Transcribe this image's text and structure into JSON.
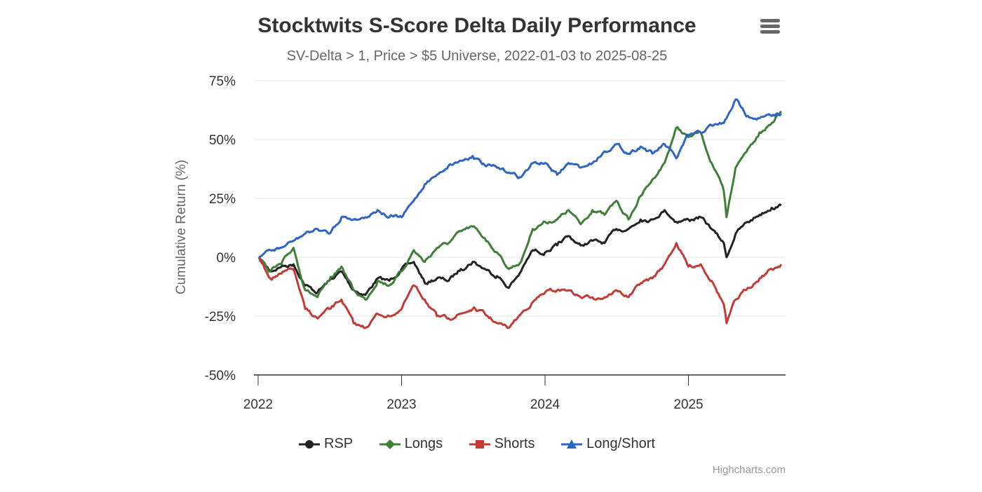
{
  "chart_data": {
    "type": "line",
    "title": "Stocktwits S-Score Delta Daily Performance",
    "subtitle": "SV-Delta > 1, Price > $5 Universe, 2022-01-03 to 2025-08-25",
    "xlabel": "",
    "ylabel": "Cumulative Return (%)",
    "ylim": [
      -50,
      75
    ],
    "y_ticks": [
      -50,
      -25,
      0,
      25,
      50,
      75
    ],
    "y_tick_labels": [
      "-50%",
      "-25%",
      "0%",
      "25%",
      "50%",
      "75%"
    ],
    "x_range": [
      "2022-01-03",
      "2025-08-25"
    ],
    "x_ticks": [
      "2022",
      "2023",
      "2024",
      "2025"
    ],
    "grid": true,
    "legend_position": "bottom-center",
    "x": [
      "2022-01-03",
      "2022-02-01",
      "2022-03-01",
      "2022-04-01",
      "2022-05-01",
      "2022-06-01",
      "2022-07-01",
      "2022-08-01",
      "2022-09-01",
      "2022-10-01",
      "2022-11-01",
      "2022-12-01",
      "2023-01-01",
      "2023-02-01",
      "2023-03-01",
      "2023-04-01",
      "2023-05-01",
      "2023-06-01",
      "2023-07-01",
      "2023-08-01",
      "2023-09-01",
      "2023-10-01",
      "2023-11-01",
      "2023-12-01",
      "2024-01-01",
      "2024-02-01",
      "2024-03-01",
      "2024-04-01",
      "2024-05-01",
      "2024-06-01",
      "2024-07-01",
      "2024-08-01",
      "2024-09-01",
      "2024-10-01",
      "2024-11-01",
      "2024-12-01",
      "2025-01-01",
      "2025-02-01",
      "2025-03-01",
      "2025-04-01",
      "2025-04-08",
      "2025-05-01",
      "2025-06-01",
      "2025-07-01",
      "2025-08-01",
      "2025-08-25"
    ],
    "series": [
      {
        "name": "RSP",
        "color": "#222222",
        "marker": "circle",
        "values": [
          0,
          -6,
          -4,
          -3,
          -12,
          -15,
          -10,
          -6,
          -14,
          -16,
          -9,
          -10,
          -5,
          -2,
          -11,
          -9,
          -10,
          -5,
          -2,
          -5,
          -8,
          -13,
          -6,
          3,
          2,
          5,
          9,
          5,
          7,
          6,
          12,
          12,
          16,
          16,
          20,
          15,
          16,
          17,
          12,
          6,
          0,
          10,
          15,
          18,
          21,
          22
        ]
      },
      {
        "name": "Longs",
        "color": "#3f7f3a",
        "marker": "diamond",
        "values": [
          0,
          -6,
          -3,
          4,
          -14,
          -17,
          -10,
          -4,
          -14,
          -18,
          -10,
          -12,
          -6,
          3,
          -2,
          4,
          6,
          11,
          13,
          8,
          2,
          -5,
          -2,
          12,
          15,
          16,
          20,
          14,
          20,
          18,
          24,
          16,
          26,
          33,
          40,
          55,
          51,
          53,
          40,
          28,
          17,
          38,
          46,
          53,
          57,
          62
        ]
      },
      {
        "name": "Shorts",
        "color": "#c43b35",
        "marker": "square",
        "values": [
          0,
          -9,
          -7,
          -5,
          -22,
          -26,
          -22,
          -18,
          -28,
          -30,
          -24,
          -25,
          -22,
          -12,
          -18,
          -25,
          -26,
          -24,
          -22,
          -24,
          -28,
          -30,
          -24,
          -19,
          -15,
          -14,
          -14,
          -17,
          -17,
          -17,
          -14,
          -17,
          -11,
          -9,
          -3,
          6,
          -4,
          -3,
          -10,
          -20,
          -28,
          -18,
          -13,
          -9,
          -5,
          -3
        ]
      },
      {
        "name": "Long/Short",
        "color": "#2f65c4",
        "marker": "triangle",
        "values": [
          0,
          3,
          4,
          7,
          10,
          12,
          10,
          17,
          16,
          17,
          20,
          17,
          17,
          24,
          31,
          35,
          39,
          41,
          43,
          39,
          38,
          36,
          34,
          40,
          40,
          35,
          40,
          38,
          40,
          45,
          48,
          44,
          47,
          44,
          48,
          42,
          52,
          53,
          56,
          57,
          59,
          67,
          60,
          59,
          60,
          61
        ]
      }
    ]
  },
  "header": {
    "title": "Stocktwits S-Score Delta Daily Performance",
    "subtitle": "SV-Delta > 1, Price > $5 Universe, 2022-01-03 to 2025-08-25",
    "menu_icon": "hamburger-menu-icon"
  },
  "legend": [
    {
      "label": "RSP",
      "color": "#222222",
      "marker": "circle"
    },
    {
      "label": "Longs",
      "color": "#3f7f3a",
      "marker": "diamond"
    },
    {
      "label": "Shorts",
      "color": "#c43b35",
      "marker": "square"
    },
    {
      "label": "Long/Short",
      "color": "#2f65c4",
      "marker": "triangle"
    }
  ],
  "credits": "Highcharts.com"
}
